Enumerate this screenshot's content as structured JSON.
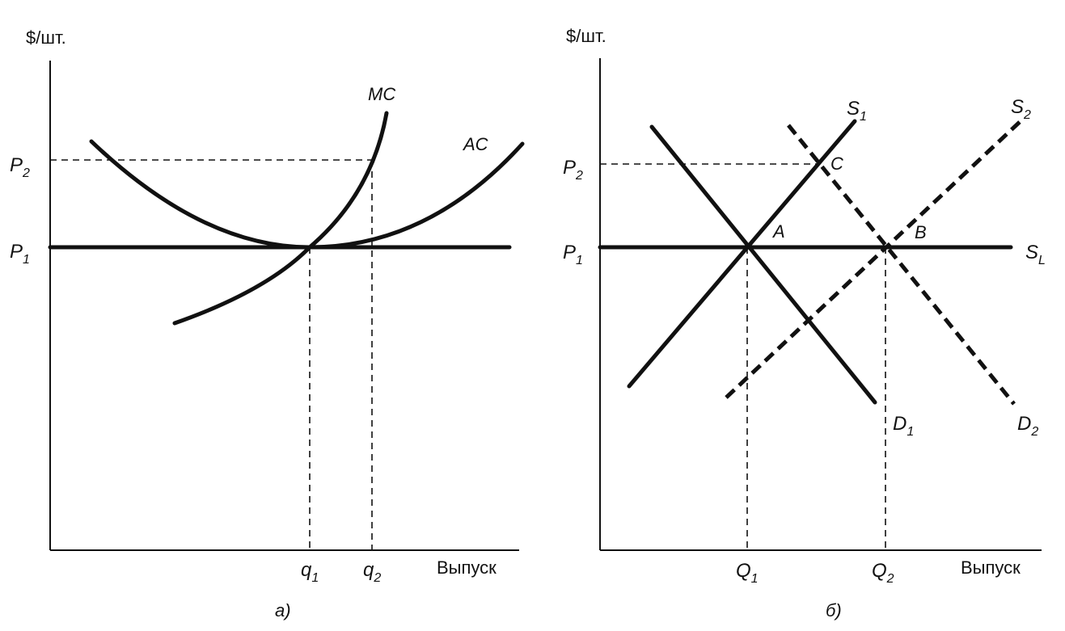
{
  "left": {
    "y_axis_label": "$/шт.",
    "x_axis_label": "Выпуск",
    "p1": "P",
    "p1_sub": "1",
    "p2": "P",
    "p2_sub": "2",
    "q1": "q",
    "q1_sub": "1",
    "q2": "q",
    "q2_sub": "2",
    "mc_label": "MC",
    "ac_label": "AC",
    "caption": "a)"
  },
  "right": {
    "y_axis_label": "$/шт.",
    "x_axis_label": "Выпуск",
    "p1": "P",
    "p1_sub": "1",
    "p2": "P",
    "p2_sub": "2",
    "q1": "Q",
    "q1_sub": "1",
    "q2": "Q",
    "q2_sub": "2",
    "s1": "S",
    "s1_sub": "1",
    "s2": "S",
    "s2_sub": "2",
    "sl": "S",
    "sl_sub": "L",
    "d1": "D",
    "d1_sub": "1",
    "d2": "D",
    "d2_sub": "2",
    "point_a": "A",
    "point_b": "B",
    "point_c": "C",
    "caption": "б)"
  }
}
